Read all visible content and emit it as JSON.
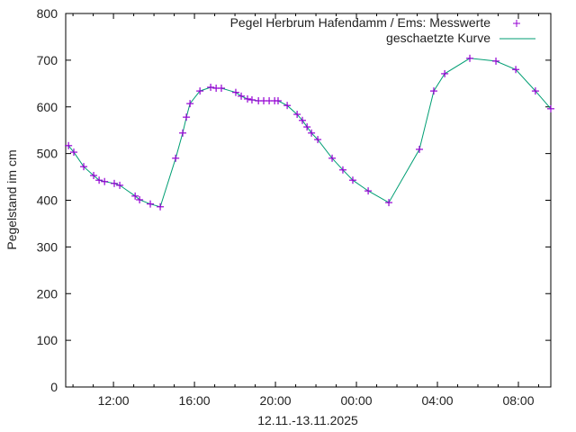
{
  "chart_data": {
    "type": "line",
    "title": "",
    "xlabel": "12.11.-13.11.2025",
    "ylabel": "Pegelstand im cm",
    "ylim": [
      0,
      800
    ],
    "yticks": [
      0,
      100,
      200,
      300,
      400,
      500,
      600,
      700,
      800
    ],
    "xlim_hours": [
      9.64,
      33.6
    ],
    "xticks": [
      {
        "label": "12:00",
        "hour": 12
      },
      {
        "label": "16:00",
        "hour": 16
      },
      {
        "label": "20:00",
        "hour": 20
      },
      {
        "label": "00:00",
        "hour": 24
      },
      {
        "label": "04:00",
        "hour": 28
      },
      {
        "label": "08:00",
        "hour": 32
      }
    ],
    "grid": false,
    "legend_position": "top-right",
    "legend": [
      {
        "label": "Pegel Herbrum Hafendamm / Ems: Messwerte",
        "style": "points",
        "color": "#9400d3"
      },
      {
        "label": "geschaetzte Kurve",
        "style": "line",
        "color": "#009e73"
      }
    ],
    "series": [
      {
        "name": "Pegel Herbrum Hafendamm / Ems: Messwerte",
        "x_hours": [
          9.78,
          10.04,
          10.53,
          11.02,
          11.29,
          11.56,
          12.04,
          12.31,
          13.07,
          13.29,
          13.82,
          14.31,
          15.07,
          15.42,
          15.6,
          15.78,
          16.27,
          16.8,
          17.07,
          17.33,
          18.04,
          18.31,
          18.62,
          18.84,
          19.16,
          19.42,
          19.69,
          19.96,
          20.13,
          20.58,
          21.07,
          21.33,
          21.56,
          21.78,
          22.09,
          22.8,
          23.33,
          23.82,
          24.58,
          25.6,
          27.11,
          27.82,
          28.36,
          29.6,
          30.89,
          31.87,
          32.84,
          33.6
        ],
        "values": [
          517,
          503,
          472,
          453,
          443,
          440,
          436,
          432,
          409,
          401,
          392,
          386,
          490,
          544,
          578,
          607,
          634,
          642,
          640,
          640,
          631,
          623,
          617,
          615,
          613,
          613,
          613,
          613,
          613,
          603,
          584,
          571,
          557,
          544,
          530,
          490,
          465,
          443,
          420,
          395,
          509,
          634,
          671,
          704,
          698,
          680,
          634,
          596
        ]
      }
    ]
  }
}
